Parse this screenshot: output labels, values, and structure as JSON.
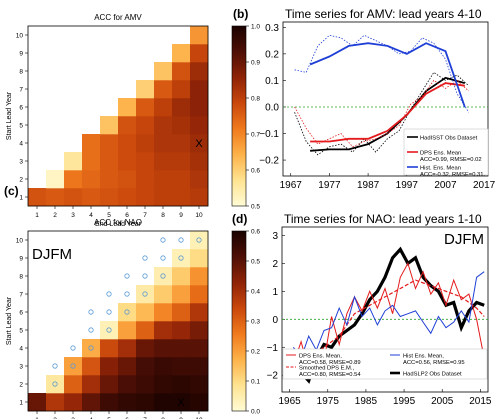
{
  "chart_data": [
    {
      "type": "heatmap",
      "panel_label": "(a)",
      "title": "ACC for AMV",
      "xlabel": "End Lead Year",
      "ylabel": "Start Lead Year",
      "xticks": [
        "1",
        "2",
        "3",
        "4",
        "5",
        "6",
        "7",
        "8",
        "9",
        "10"
      ],
      "yticks": [
        "1",
        "2",
        "3",
        "4",
        "5",
        "6",
        "7",
        "8",
        "9",
        "10"
      ],
      "colorbar": {
        "min": 0.5,
        "max": 1.0,
        "ticks": [
          "0.5",
          "0.6",
          "0.7",
          "0.8",
          "0.9",
          "1.0"
        ],
        "colors": [
          "#fffbd6",
          "#fee391",
          "#fdb24a",
          "#f07a1d",
          "#c9470c",
          "#8f2307",
          "#4e0f06",
          "#1a0200"
        ]
      },
      "values": [
        [
          0.77,
          0.76,
          0.77,
          0.76,
          0.77,
          0.78,
          0.79,
          0.8,
          0.8,
          0.81
        ],
        [
          null,
          0.52,
          0.72,
          0.74,
          0.76,
          0.77,
          0.79,
          0.8,
          0.8,
          0.82
        ],
        [
          null,
          null,
          0.56,
          0.73,
          0.76,
          0.78,
          0.79,
          0.81,
          0.81,
          0.83
        ],
        [
          null,
          null,
          null,
          0.73,
          0.76,
          0.78,
          0.8,
          0.82,
          0.82,
          0.84
        ],
        [
          null,
          null,
          null,
          null,
          0.62,
          0.77,
          0.79,
          0.82,
          0.83,
          0.85
        ],
        [
          null,
          null,
          null,
          null,
          null,
          0.64,
          0.76,
          0.8,
          0.84,
          0.86
        ],
        [
          null,
          null,
          null,
          null,
          null,
          null,
          0.6,
          0.76,
          0.8,
          0.86
        ],
        [
          null,
          null,
          null,
          null,
          null,
          null,
          null,
          0.62,
          0.77,
          0.84
        ],
        [
          null,
          null,
          null,
          null,
          null,
          null,
          null,
          null,
          0.64,
          0.79
        ],
        [
          null,
          null,
          null,
          null,
          null,
          null,
          null,
          null,
          null,
          0.68
        ]
      ],
      "annotations": [
        {
          "text": "X",
          "x": 10,
          "y": 4
        }
      ]
    },
    {
      "type": "line",
      "panel_label": "(b)",
      "title": "Time series for AMV: lead years 4-10",
      "xlim": [
        1965,
        2018
      ],
      "ylim": [
        -0.26,
        0.32
      ],
      "xticks": [
        "1967",
        "1977",
        "1987",
        "1997",
        "2007",
        "2017"
      ],
      "yticks": [
        "−0.2",
        "−0.1",
        "0.0",
        "0.1",
        "0.2",
        "0.3"
      ],
      "legend_position": "bottom-right",
      "series": [
        {
          "name": "HadISST Obs Dataset",
          "color": "#000000",
          "style": "thick",
          "x": [
            1972,
            1977,
            1982,
            1987,
            1992,
            1997,
            2002,
            2007,
            2012
          ],
          "y": [
            -0.165,
            -0.16,
            -0.16,
            -0.14,
            -0.1,
            -0.03,
            0.06,
            0.11,
            0.09
          ]
        },
        {
          "name": "HadISST Obs Dataset",
          "color": "#000000",
          "style": "thin-dotted",
          "x": [
            1968,
            1971,
            1974,
            1977,
            1980,
            1983,
            1986,
            1989,
            1992,
            1995,
            1998,
            2001,
            2004,
            2007,
            2010,
            2013
          ],
          "y": [
            -0.02,
            -0.13,
            -0.18,
            -0.15,
            -0.14,
            -0.17,
            -0.12,
            -0.17,
            -0.12,
            -0.09,
            -0.01,
            0.06,
            0.13,
            0.1,
            0.12,
            0.08
          ]
        },
        {
          "name": "DPS Ens. Mean",
          "color": "#e41a1c",
          "style": "thick",
          "x": [
            1972,
            1977,
            1982,
            1987,
            1992,
            1997,
            2002,
            2007,
            2012
          ],
          "y": [
            -0.13,
            -0.13,
            -0.12,
            -0.12,
            -0.09,
            -0.03,
            0.05,
            0.09,
            0.08
          ]
        },
        {
          "name": "DPS Ens. Mean",
          "color": "#e41a1c",
          "style": "thin-dotted",
          "x": [
            1968,
            1971,
            1974,
            1977,
            1980,
            1983,
            1986,
            1989,
            1992,
            1995,
            1998,
            2001,
            2004,
            2007,
            2010,
            2013
          ],
          "y": [
            0.0,
            -0.08,
            -0.14,
            -0.12,
            -0.1,
            -0.15,
            -0.13,
            -0.12,
            -0.1,
            -0.07,
            0.01,
            0.04,
            0.1,
            0.07,
            0.1,
            0.06
          ]
        },
        {
          "name": "Hist. Ens. Mean",
          "color": "#1f3fd6",
          "style": "thick",
          "x": [
            1972,
            1977,
            1982,
            1987,
            1992,
            1997,
            2002,
            2007,
            2012
          ],
          "y": [
            0.16,
            0.19,
            0.23,
            0.24,
            0.23,
            0.2,
            0.24,
            0.21,
            0.0
          ]
        },
        {
          "name": "Hist. Ens. Mean",
          "color": "#1f3fd6",
          "style": "thin-dotted",
          "x": [
            1968,
            1971,
            1974,
            1977,
            1980,
            1983,
            1986,
            1989,
            1992,
            1995,
            1998,
            2001,
            2004,
            2007,
            2010,
            2013
          ],
          "y": [
            0.14,
            0.13,
            0.23,
            0.27,
            0.26,
            0.23,
            0.27,
            0.25,
            0.23,
            0.2,
            0.21,
            0.26,
            0.24,
            0.18,
            0.05,
            -0.02
          ]
        }
      ],
      "reference_line": {
        "y": 0.0,
        "color": "#2ca02c",
        "style": "dashed"
      },
      "legend": [
        {
          "label": "HadISST Obs Dataset",
          "color": "#000000"
        },
        {
          "label": "DPS Ens. Mean",
          "sub": "ACC=0.99, RMSE=0.02",
          "color": "#e41a1c"
        },
        {
          "label": "Hist. Ens. Mean",
          "sub": "ACC=-0.32, RMSE=0.31",
          "color": "#1f3fd6"
        }
      ]
    },
    {
      "type": "heatmap",
      "panel_label": "(c)",
      "title": "ACC for NAO",
      "season": "DJFM",
      "xlabel": "End Lead Year",
      "ylabel": "Start Lead Year",
      "xticks": [
        "1",
        "2",
        "3",
        "4",
        "5",
        "6",
        "7",
        "8",
        "9",
        "10"
      ],
      "yticks": [
        "1",
        "2",
        "3",
        "4",
        "5",
        "6",
        "7",
        "8",
        "9",
        "10"
      ],
      "colorbar": {
        "min": 0.0,
        "max": 0.6,
        "ticks": [
          "0.0",
          "0.1",
          "0.2",
          "0.3",
          "0.4",
          "0.5",
          "0.6"
        ],
        "colors": [
          "#fffbd6",
          "#fee391",
          "#fdb24a",
          "#f07a1d",
          "#c9470c",
          "#8f2307",
          "#4e0f06",
          "#1a0200"
        ]
      },
      "values": [
        [
          0.48,
          0.38,
          0.42,
          0.49,
          0.54,
          0.56,
          0.57,
          0.59,
          0.59,
          0.58
        ],
        [
          null,
          0.07,
          0.3,
          0.4,
          0.48,
          0.52,
          0.54,
          0.56,
          0.57,
          0.56
        ],
        [
          null,
          null,
          0.2,
          0.32,
          0.44,
          0.48,
          0.53,
          0.55,
          0.54,
          0.54
        ],
        [
          null,
          null,
          null,
          0.18,
          0.34,
          0.4,
          0.48,
          0.5,
          0.5,
          0.5
        ],
        [
          null,
          null,
          null,
          null,
          0.04,
          0.2,
          0.3,
          0.4,
          0.42,
          0.46
        ],
        [
          null,
          null,
          null,
          null,
          null,
          0.1,
          0.16,
          0.24,
          0.3,
          0.38
        ],
        [
          null,
          null,
          null,
          null,
          null,
          null,
          0.06,
          0.13,
          0.2,
          0.28
        ],
        [
          null,
          null,
          null,
          null,
          null,
          null,
          null,
          0.05,
          0.13,
          0.22
        ],
        [
          null,
          null,
          null,
          null,
          null,
          null,
          null,
          null,
          0.04,
          0.1
        ],
        [
          null,
          null,
          null,
          null,
          null,
          null,
          null,
          null,
          null,
          0.04
        ]
      ],
      "circle_cells": [
        [
          2,
          2
        ],
        [
          3,
          3
        ],
        [
          3,
          2
        ],
        [
          4,
          3
        ],
        [
          4,
          4
        ],
        [
          5,
          4
        ],
        [
          5,
          5
        ],
        [
          6,
          4
        ],
        [
          6,
          5
        ],
        [
          6,
          6
        ],
        [
          7,
          5
        ],
        [
          7,
          6
        ],
        [
          7,
          7
        ],
        [
          8,
          6
        ],
        [
          8,
          7
        ],
        [
          8,
          8
        ],
        [
          9,
          7
        ],
        [
          9,
          8
        ],
        [
          9,
          9
        ],
        [
          10,
          8
        ],
        [
          10,
          9
        ],
        [
          10,
          10
        ]
      ],
      "annotations": [
        {
          "text": "X",
          "x": 9,
          "y": 1
        }
      ]
    },
    {
      "type": "line",
      "panel_label": "(d)",
      "title": "Time series for NAO: lead years 1-10",
      "season": "DJFM",
      "xlim": [
        1963,
        2017
      ],
      "ylim": [
        -2.6,
        3.3
      ],
      "xticks": [
        "1965",
        "1975",
        "1985",
        "1995",
        "2005",
        "2015"
      ],
      "yticks": [
        "−2",
        "−1",
        "0",
        "1",
        "2",
        "3"
      ],
      "legend_position": "bottom",
      "series": [
        {
          "name": "HadSLP2 Obs Dataset",
          "color": "#000000",
          "style": "thick",
          "x": [
            1966,
            1968,
            1970,
            1972,
            1974,
            1976,
            1978,
            1980,
            1982,
            1984,
            1986,
            1988,
            1990,
            1992,
            1994,
            1996,
            1998,
            2000,
            2002,
            2004,
            2006,
            2008,
            2010,
            2012,
            2014,
            2016
          ],
          "y": [
            -1.4,
            -1.9,
            -2.2,
            -1.4,
            -0.9,
            -1.0,
            -0.6,
            -0.4,
            -0.2,
            0.2,
            0.7,
            1.0,
            1.5,
            2.2,
            2.5,
            2.0,
            2.2,
            1.5,
            1.2,
            1.0,
            0.5,
            0.6,
            -0.3,
            0.3,
            0.6,
            0.5
          ]
        },
        {
          "name": "DPS Ens. Mean",
          "color": "#e41a1c",
          "style": "thin",
          "x": [
            1966,
            1968,
            1970,
            1972,
            1974,
            1976,
            1978,
            1980,
            1982,
            1984,
            1986,
            1988,
            1990,
            1992,
            1994,
            1996,
            1998,
            2000,
            2002,
            2004,
            2006,
            2008,
            2010,
            2012,
            2014,
            2016
          ],
          "y": [
            -1.6,
            -0.8,
            -1.8,
            -1.2,
            -1.5,
            0.1,
            -0.9,
            0.2,
            0.8,
            0.3,
            1.0,
            0.4,
            1.1,
            0.2,
            1.5,
            2.0,
            1.1,
            1.7,
            0.9,
            1.3,
            0.5,
            1.4,
            0.7,
            0.9,
            0.0,
            -1.4
          ]
        },
        {
          "name": "Smoothed DPS E.M.",
          "color": "#e41a1c",
          "style": "dashed",
          "x": [
            1966,
            1970,
            1974,
            1978,
            1982,
            1986,
            1990,
            1994,
            1998,
            2002,
            2006,
            2010,
            2014,
            2016
          ],
          "y": [
            -1.3,
            -1.4,
            -1.0,
            -0.6,
            0.2,
            0.5,
            0.8,
            1.1,
            1.4,
            1.2,
            1.0,
            0.8,
            0.4,
            0.1
          ]
        },
        {
          "name": "Hist Ens. Mean",
          "color": "#1f3fd6",
          "style": "thin",
          "x": [
            1966,
            1968,
            1970,
            1972,
            1974,
            1976,
            1978,
            1980,
            1982,
            1984,
            1986,
            1988,
            1990,
            1992,
            1994,
            1996,
            1998,
            2000,
            2002,
            2004,
            2006,
            2008,
            2010,
            2012,
            2014,
            2016
          ],
          "y": [
            -1.0,
            -1.4,
            -0.6,
            -1.1,
            -0.4,
            -0.3,
            0.4,
            -0.2,
            0.8,
            0.1,
            0.4,
            -0.2,
            0.3,
            0.5,
            0.1,
            0.2,
            0.3,
            -0.1,
            -0.5,
            0.1,
            -0.3,
            -0.1,
            0.3,
            -0.1,
            1.5,
            1.7
          ]
        }
      ],
      "reference_line": {
        "y": 0.0,
        "color": "#2ca02c",
        "style": "dashed"
      },
      "legend": [
        {
          "label": "DPS Ens. Mean,",
          "sub": "ACC=0.58, RMSE=0.89",
          "color": "#e41a1c",
          "style": "solid"
        },
        {
          "label": "Smoothed DPS E.M.,",
          "sub": "ACC=0.80, RMSE=0.54",
          "color": "#e41a1c",
          "style": "dashed"
        },
        {
          "label": "Hist Ens. Mean,",
          "sub": "ACC=0.56, RMSE=0.95",
          "color": "#1f3fd6",
          "style": "solid"
        },
        {
          "label": "HadSLP2 Obs Dataset",
          "color": "#000000",
          "style": "thick"
        }
      ]
    }
  ]
}
